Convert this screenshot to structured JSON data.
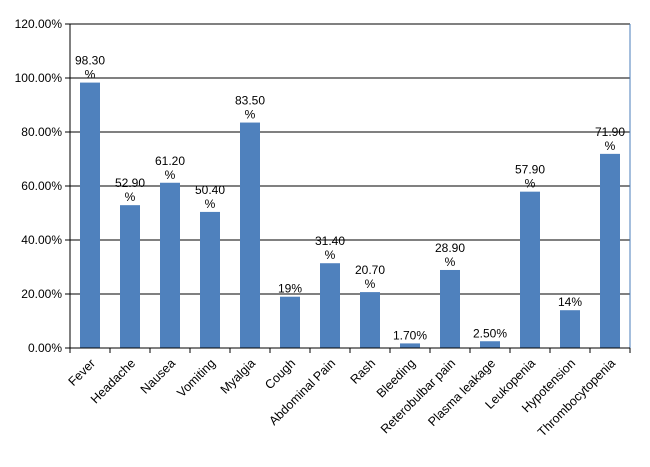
{
  "chart_data": {
    "type": "bar",
    "title": "",
    "xlabel": "",
    "ylabel": "",
    "ylim": [
      0,
      120
    ],
    "grid": true,
    "bar_color": "#4f81bd",
    "y_tick_values": [
      0,
      20,
      40,
      60,
      80,
      100,
      120
    ],
    "y_tick_labels": [
      "0.00%",
      "20.00%",
      "40.00%",
      "60.00%",
      "80.00%",
      "100.00%",
      "120.00%"
    ],
    "categories": [
      "Fever",
      "Headache",
      "Nausea",
      "Vomiting",
      "Myalgia",
      "Cough",
      "Abdominal Pain",
      "Rash",
      "Bleeding",
      "Reterobulbar pain",
      "Plasma leakage",
      "Leukopenia",
      "Hypotension",
      "Thrombocytopenia"
    ],
    "values": [
      98.3,
      52.9,
      61.2,
      50.4,
      83.5,
      19,
      31.4,
      20.7,
      1.7,
      28.9,
      2.5,
      57.9,
      14,
      71.9
    ],
    "data_labels": [
      [
        "98.30",
        "%"
      ],
      [
        "52.90",
        "%"
      ],
      [
        "61.20",
        "%"
      ],
      [
        "50.40",
        "%"
      ],
      [
        "83.50",
        "%"
      ],
      [
        "19%"
      ],
      [
        "31.40",
        "%"
      ],
      [
        "20.70",
        "%"
      ],
      [
        "1.70%"
      ],
      [
        "28.90",
        "%"
      ],
      [
        "2.50%"
      ],
      [
        "57.90",
        "%"
      ],
      [
        "14%"
      ],
      [
        "71.90",
        "%"
      ]
    ]
  }
}
